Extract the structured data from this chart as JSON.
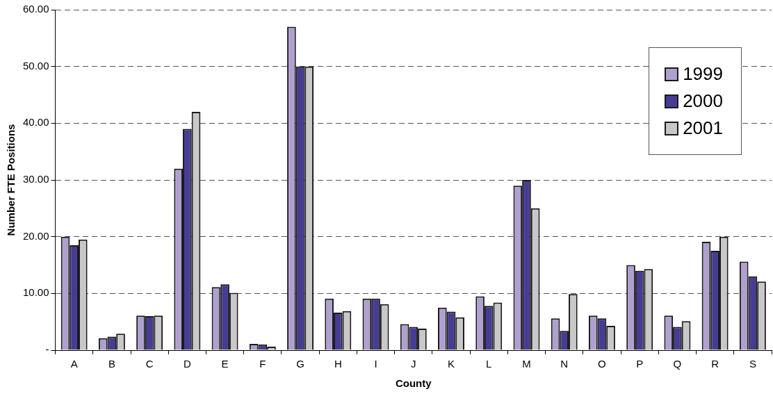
{
  "chart_data": {
    "type": "bar",
    "xlabel": "County",
    "ylabel": "Number FTE Positions",
    "categories": [
      "A",
      "B",
      "C",
      "D",
      "E",
      "F",
      "G",
      "H",
      "I",
      "J",
      "K",
      "L",
      "M",
      "N",
      "O",
      "P",
      "Q",
      "R",
      "S"
    ],
    "series": [
      {
        "name": "1999",
        "color": "#b0a0d0",
        "values": [
          20,
          2.1,
          6.1,
          32,
          11.1,
          1.1,
          57,
          9.1,
          9.1,
          4.6,
          7.5,
          9.5,
          29,
          5.6,
          6.1,
          15,
          6.1,
          19.1,
          15.6
        ]
      },
      {
        "name": "2000",
        "color": "#463c96",
        "values": [
          18.5,
          2.4,
          6,
          39,
          11.6,
          1,
          50,
          6.6,
          9.1,
          4.1,
          6.8,
          7.8,
          30,
          3.4,
          5.6,
          14,
          4.1,
          17.5,
          13
        ]
      },
      {
        "name": "2001",
        "color": "#c8c8c8",
        "values": [
          19.5,
          2.9,
          6.1,
          42,
          10.1,
          0.6,
          50,
          6.9,
          8.1,
          3.8,
          5.8,
          8.4,
          25,
          9.9,
          4.3,
          14.3,
          5.1,
          20,
          12.1
        ]
      }
    ],
    "ylim": [
      0,
      60
    ],
    "yticks": [
      {
        "value": 0,
        "label": "-"
      },
      {
        "value": 10,
        "label": "10.00"
      },
      {
        "value": 20,
        "label": "20.00"
      },
      {
        "value": 30,
        "label": "30.00"
      },
      {
        "value": 40,
        "label": "40.00"
      },
      {
        "value": 50,
        "label": "50.00"
      },
      {
        "value": 60,
        "label": "60.00"
      }
    ],
    "grid": "y",
    "legend": "top right"
  }
}
